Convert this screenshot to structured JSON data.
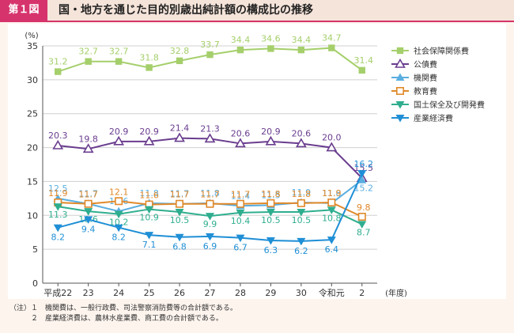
{
  "header": {
    "figure_label": "第１図",
    "title": "国・地方を通じた目的別歳出純計額の構成比の推移"
  },
  "notes": [
    "（注）１　機関費は、一般行政費、司法警察消防費等の合計額である。",
    "　　　２　産業経済費は、農林水産業費、商工費の合計額である。"
  ],
  "chart_data": {
    "type": "line",
    "title": "国・地方を通じた目的別歳出純計額の構成比の推移",
    "ylabel": "(%)",
    "xlabel": "(年度)",
    "ylim": [
      0,
      35
    ],
    "yticks": [
      0,
      5,
      10,
      15,
      20,
      25,
      30,
      35
    ],
    "grid": true,
    "legend_position": "right",
    "categories": [
      "平成22",
      "23",
      "24",
      "25",
      "26",
      "27",
      "28",
      "29",
      "30",
      "令和元",
      "2"
    ],
    "series": [
      {
        "name": "社会保障関係費",
        "color": "#a5cf6b",
        "marker": "square-filled",
        "values": [
          31.2,
          32.7,
          32.7,
          31.8,
          32.8,
          33.7,
          34.4,
          34.6,
          34.4,
          34.7,
          31.4
        ],
        "labels": [
          "31.2",
          "32.7",
          "32.7",
          "31.8",
          "32.8",
          "33.7",
          "34.4",
          "34.6",
          "34.4",
          "34.7",
          "31.4"
        ]
      },
      {
        "name": "公債費",
        "color": "#6a3d8f",
        "marker": "triangle-open",
        "values": [
          20.3,
          19.8,
          20.9,
          20.9,
          21.4,
          21.3,
          20.6,
          20.9,
          20.6,
          20.0,
          15.5
        ],
        "labels": [
          "20.3",
          "19.8",
          "20.9",
          "20.9",
          "21.4",
          "21.3",
          "20.6",
          "20.9",
          "20.6",
          "20.0",
          "15.5"
        ]
      },
      {
        "name": "機関費",
        "color": "#5aaee0",
        "marker": "triangle-filled",
        "values": [
          12.5,
          11.7,
          10.6,
          11.8,
          11.7,
          11.8,
          11.4,
          11.5,
          11.9,
          11.8,
          15.2
        ],
        "labels": [
          "12.5",
          "11.7",
          "10.6",
          "11.8",
          "11.7",
          "11.8",
          "11.4",
          "11.5",
          "11.9",
          "11.8",
          "15.2"
        ]
      },
      {
        "name": "教育費",
        "color": "#e0892a",
        "marker": "square-open",
        "values": [
          11.9,
          11.7,
          12.1,
          11.6,
          11.7,
          11.7,
          11.7,
          11.8,
          11.8,
          11.9,
          9.8
        ],
        "labels": [
          "11.9",
          "11.7",
          "12.1",
          "11.6",
          "11.7",
          "11.7",
          "11.7",
          "11.8",
          "11.8",
          "11.9",
          "9.8"
        ]
      },
      {
        "name": "国土保全及び開発費",
        "color": "#2fae8f",
        "marker": "triangle-down-filled",
        "values": [
          11.3,
          10.6,
          10.2,
          10.9,
          10.5,
          9.9,
          10.4,
          10.5,
          10.5,
          10.8,
          8.7
        ],
        "labels": [
          "11.3",
          "10.6",
          "10.2",
          "10.9",
          "10.5",
          "9.9",
          "10.4",
          "10.5",
          "10.5",
          "10.8",
          "8.7"
        ]
      },
      {
        "name": "産業経済費",
        "color": "#1f8fd6",
        "marker": "triangle-down-filled",
        "values": [
          8.2,
          9.4,
          8.2,
          7.1,
          6.8,
          6.9,
          6.7,
          6.3,
          6.2,
          6.4,
          16.2
        ],
        "labels": [
          "8.2",
          "9.4",
          "8.2",
          "7.1",
          "6.8",
          "6.9",
          "6.7",
          "6.3",
          "6.2",
          "6.4",
          "16.2"
        ]
      }
    ]
  }
}
